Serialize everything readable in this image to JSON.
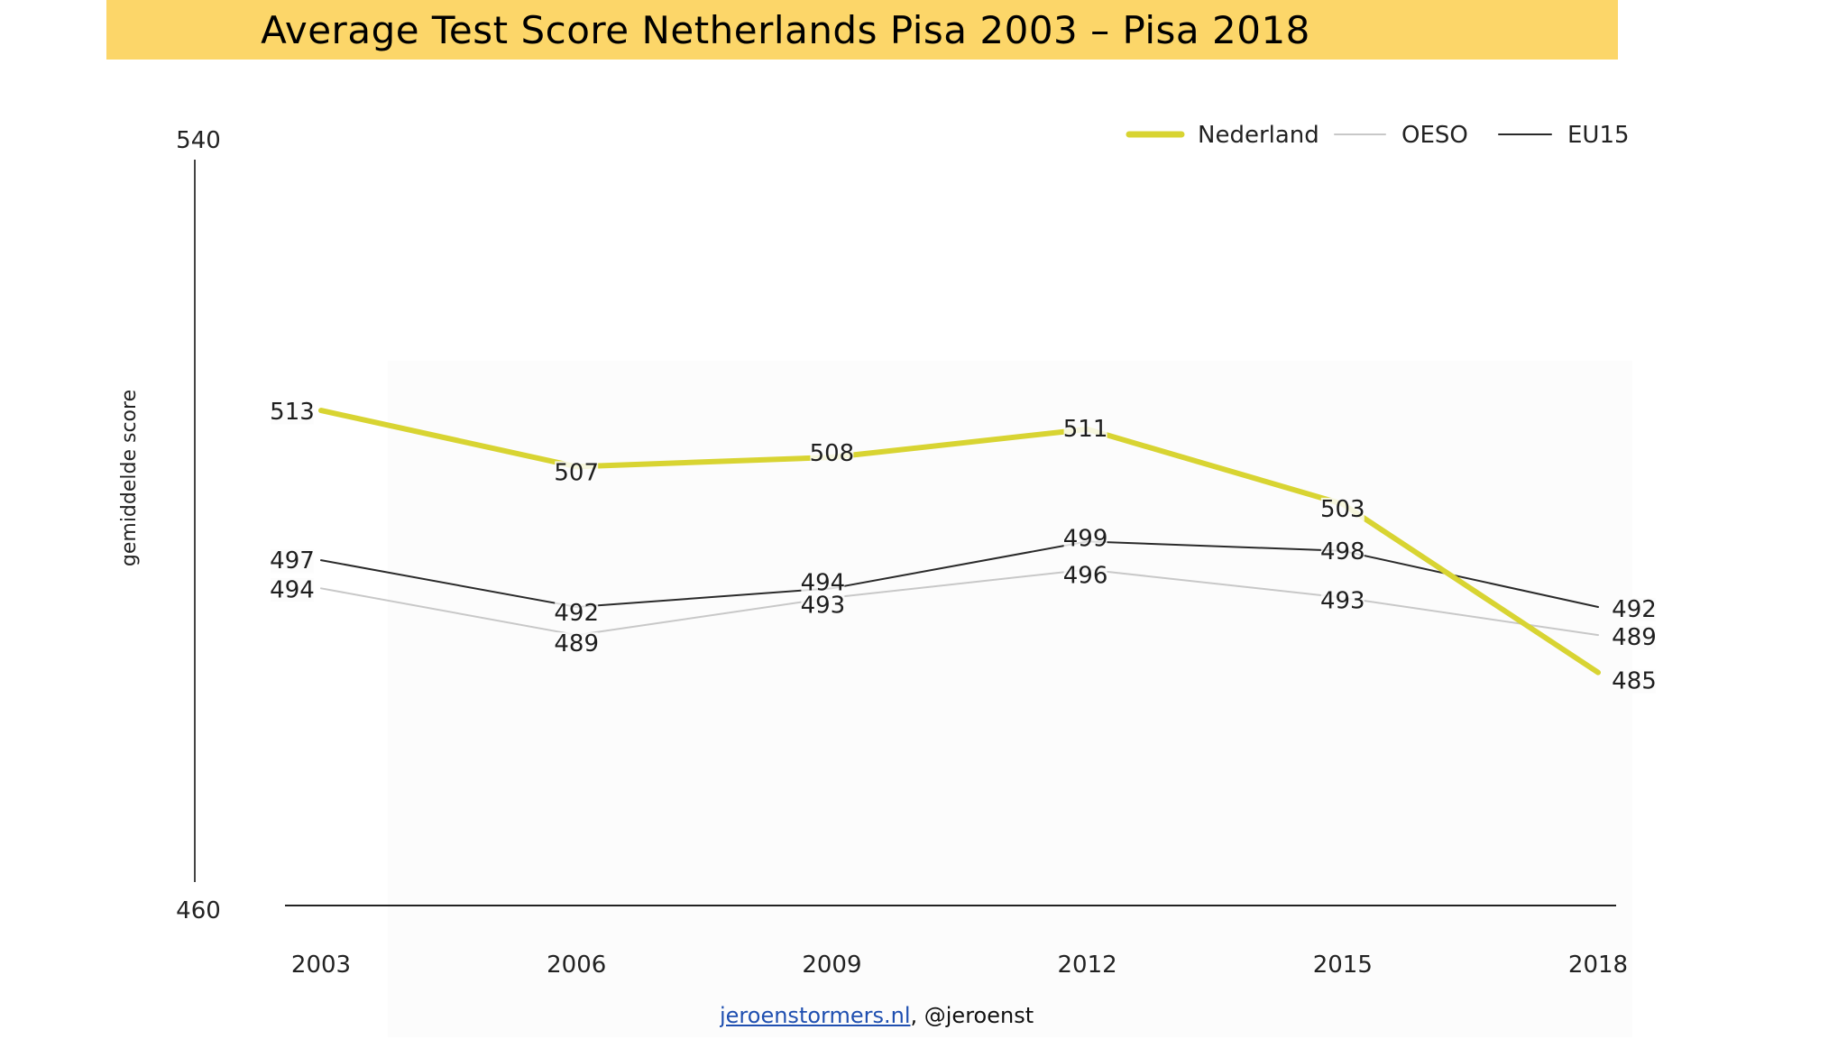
{
  "title": "Average Test Score Netherlands Pisa 2003 – Pisa 2018",
  "chart_data": {
    "type": "line",
    "title": "Average Test Score Netherlands Pisa 2003 – Pisa 2018",
    "xlabel": "",
    "ylabel": "gemiddelde score",
    "categories": [
      "2003",
      "2006",
      "2009",
      "2012",
      "2015",
      "2018"
    ],
    "ylim": [
      460,
      540
    ],
    "y_ticks": [
      "540",
      "460"
    ],
    "legend_position": "top-right",
    "series": [
      {
        "name": "Nederland",
        "color": "#d8d432",
        "values": [
          513,
          507,
          508,
          511,
          503,
          485
        ]
      },
      {
        "name": "OESO",
        "color": "#c8c8c8",
        "values": [
          494,
          489,
          493,
          496,
          493,
          489
        ]
      },
      {
        "name": "EU15",
        "color": "#2a2a2a",
        "values": [
          497,
          492,
          494,
          499,
          498,
          492
        ]
      }
    ]
  },
  "footer": {
    "link_text": "jeroenstormers.nl",
    "handle_text": ", @jeroenst"
  }
}
